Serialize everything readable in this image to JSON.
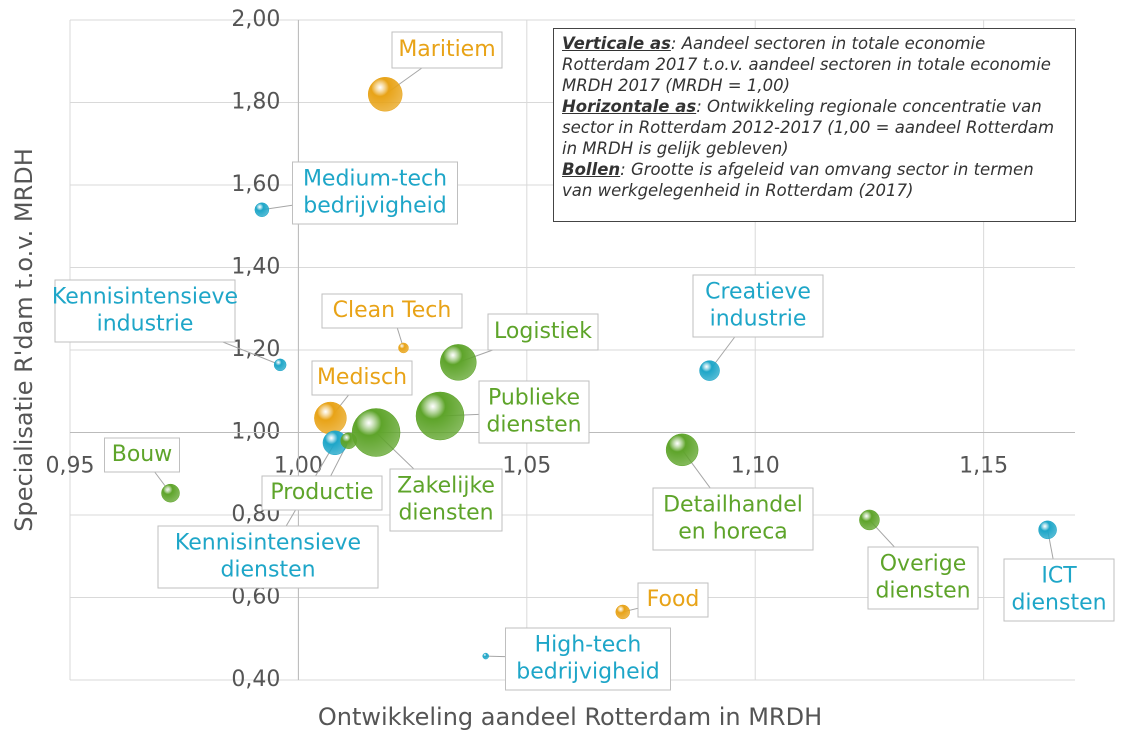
{
  "chart_data": {
    "type": "bubble",
    "xlabel": "Ontwikkeling aandeel Rotterdam in MRDH",
    "ylabel": "Specialisatie R'dam t.o.v. MRDH",
    "xlim": [
      0.95,
      1.17
    ],
    "ylim": [
      0.4,
      2.0
    ],
    "xticks": [
      {
        "value": 0.95,
        "label": "0,95"
      },
      {
        "value": 1.0,
        "label": "1,00"
      },
      {
        "value": 1.05,
        "label": "1,05"
      },
      {
        "value": 1.1,
        "label": "1,10"
      },
      {
        "value": 1.15,
        "label": "1,15"
      }
    ],
    "yticks": [
      {
        "value": 0.4,
        "label": "0,40"
      },
      {
        "value": 0.6,
        "label": "0,60"
      },
      {
        "value": 0.8,
        "label": "0,80"
      },
      {
        "value": 1.0,
        "label": "1,00"
      },
      {
        "value": 1.2,
        "label": "1,20"
      },
      {
        "value": 1.4,
        "label": "1,40"
      },
      {
        "value": 1.6,
        "label": "1,60"
      },
      {
        "value": 1.8,
        "label": "1,80"
      },
      {
        "value": 2.0,
        "label": "2,00"
      }
    ],
    "grid": true,
    "annotation": [
      {
        "head": "Verticale as",
        "text": ": Aandeel sectoren in totale economie Rotterdam 2017 t.o.v. aandeel sectoren in totale economie MRDH 2017 (MRDH = 1,00)"
      },
      {
        "head": "Horizontale as",
        "text": ": Ontwikkeling regionale concentratie van sector in Rotterdam 2012-2017 (1,00 = aandeel Rotterdam in MRDH is gelijk gebleven)"
      },
      {
        "head": "Bollen",
        "text": ":  Grootte is afgeleid van omvang sector in termen van werkgelegenheid in Rotterdam (2017)"
      }
    ],
    "points": [
      {
        "name": [
          "Maritiem"
        ],
        "color": "#e8a317",
        "x": 1.019,
        "y": 1.82,
        "size": 17
      },
      {
        "name": [
          "Medium-tech",
          "bedrijvigheid"
        ],
        "color": "#1ea6c8",
        "x": 0.992,
        "y": 1.54,
        "size": 7
      },
      {
        "name": [
          "Kennisintensieve",
          "industrie"
        ],
        "color": "#1ea6c8",
        "x": 0.996,
        "y": 1.164,
        "size": 6
      },
      {
        "name": [
          "Clean Tech"
        ],
        "color": "#e8a317",
        "x": 1.023,
        "y": 1.205,
        "size": 5
      },
      {
        "name": [
          "Logistiek"
        ],
        "color": "#5ea42a",
        "x": 1.035,
        "y": 1.17,
        "size": 18
      },
      {
        "name": [
          "Medisch"
        ],
        "color": "#e8a317",
        "x": 1.007,
        "y": 1.035,
        "size": 16
      },
      {
        "name": [
          "Publieke",
          "diensten"
        ],
        "color": "#5ea42a",
        "x": 1.031,
        "y": 1.04,
        "size": 24
      },
      {
        "name": [
          "Zakelijke",
          "diensten"
        ],
        "color": "#5ea42a",
        "x": 1.017,
        "y": 1.0,
        "size": 24
      },
      {
        "name": [
          "Kennisintensieve",
          "diensten"
        ],
        "color": "#1ea6c8",
        "x": 1.008,
        "y": 0.975,
        "size": 12
      },
      {
        "name": [
          "Productie"
        ],
        "color": "#5ea42a",
        "x": 1.011,
        "y": 0.98,
        "size": 8
      },
      {
        "name": [
          "Bouw"
        ],
        "color": "#5ea42a",
        "x": 0.972,
        "y": 0.853,
        "size": 9
      },
      {
        "name": [
          "Creatieve",
          "industrie"
        ],
        "color": "#1ea6c8",
        "x": 1.09,
        "y": 1.15,
        "size": 10
      },
      {
        "name": [
          "Detailhandel",
          "en horeca"
        ],
        "color": "#5ea42a",
        "x": 1.084,
        "y": 0.958,
        "size": 16
      },
      {
        "name": [
          "Overige",
          "diensten"
        ],
        "color": "#5ea42a",
        "x": 1.125,
        "y": 0.788,
        "size": 10
      },
      {
        "name": [
          "ICT",
          "diensten"
        ],
        "color": "#1ea6c8",
        "x": 1.164,
        "y": 0.764,
        "size": 9
      },
      {
        "name": [
          "Food"
        ],
        "color": "#e8a317",
        "x": 1.071,
        "y": 0.565,
        "size": 7
      },
      {
        "name": [
          "High-tech",
          "bedrijvigheid"
        ],
        "color": "#1ea6c8",
        "x": 1.041,
        "y": 0.458,
        "size": 3
      }
    ]
  }
}
